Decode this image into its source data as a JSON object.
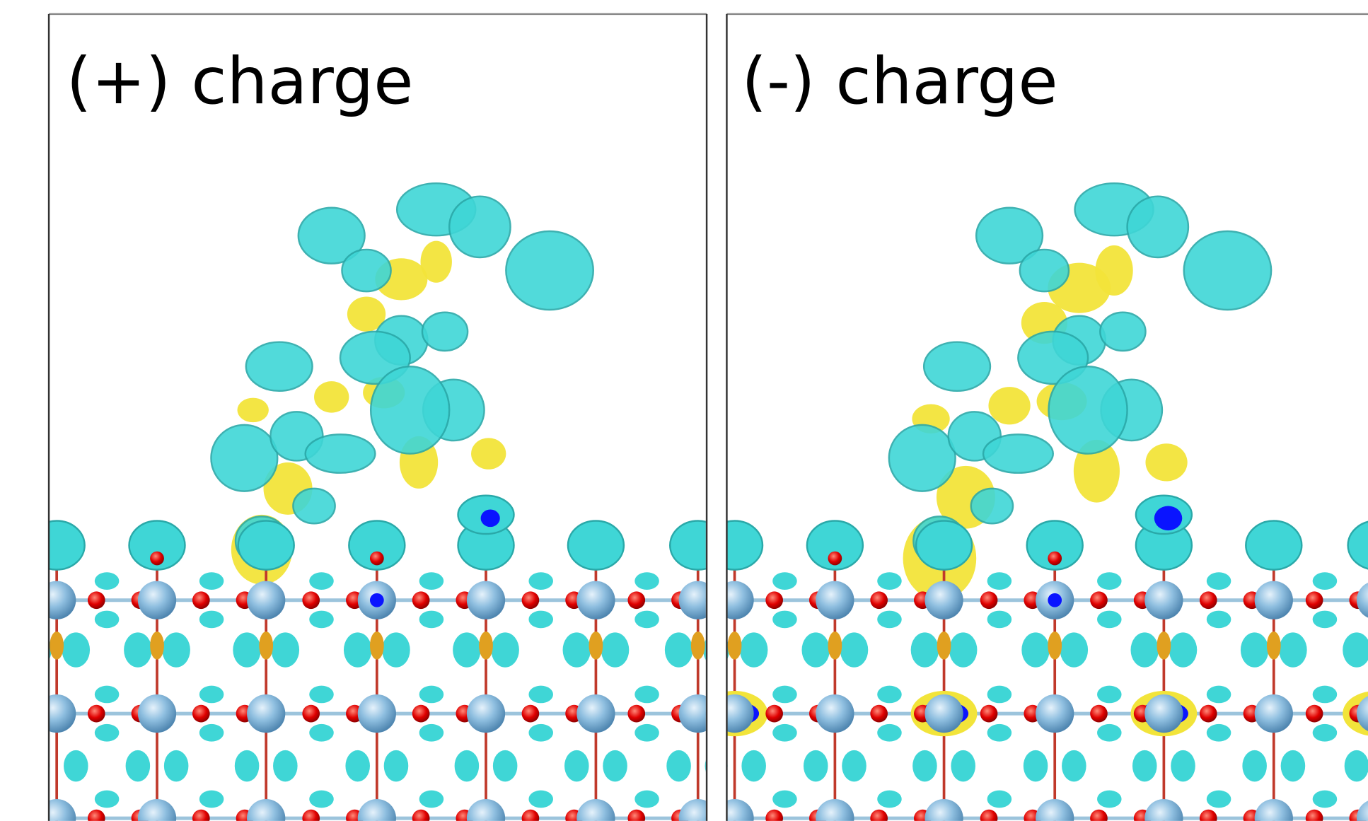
{
  "panels": [
    {
      "label": "(+) charge"
    },
    {
      "label": "(-) charge"
    }
  ]
}
